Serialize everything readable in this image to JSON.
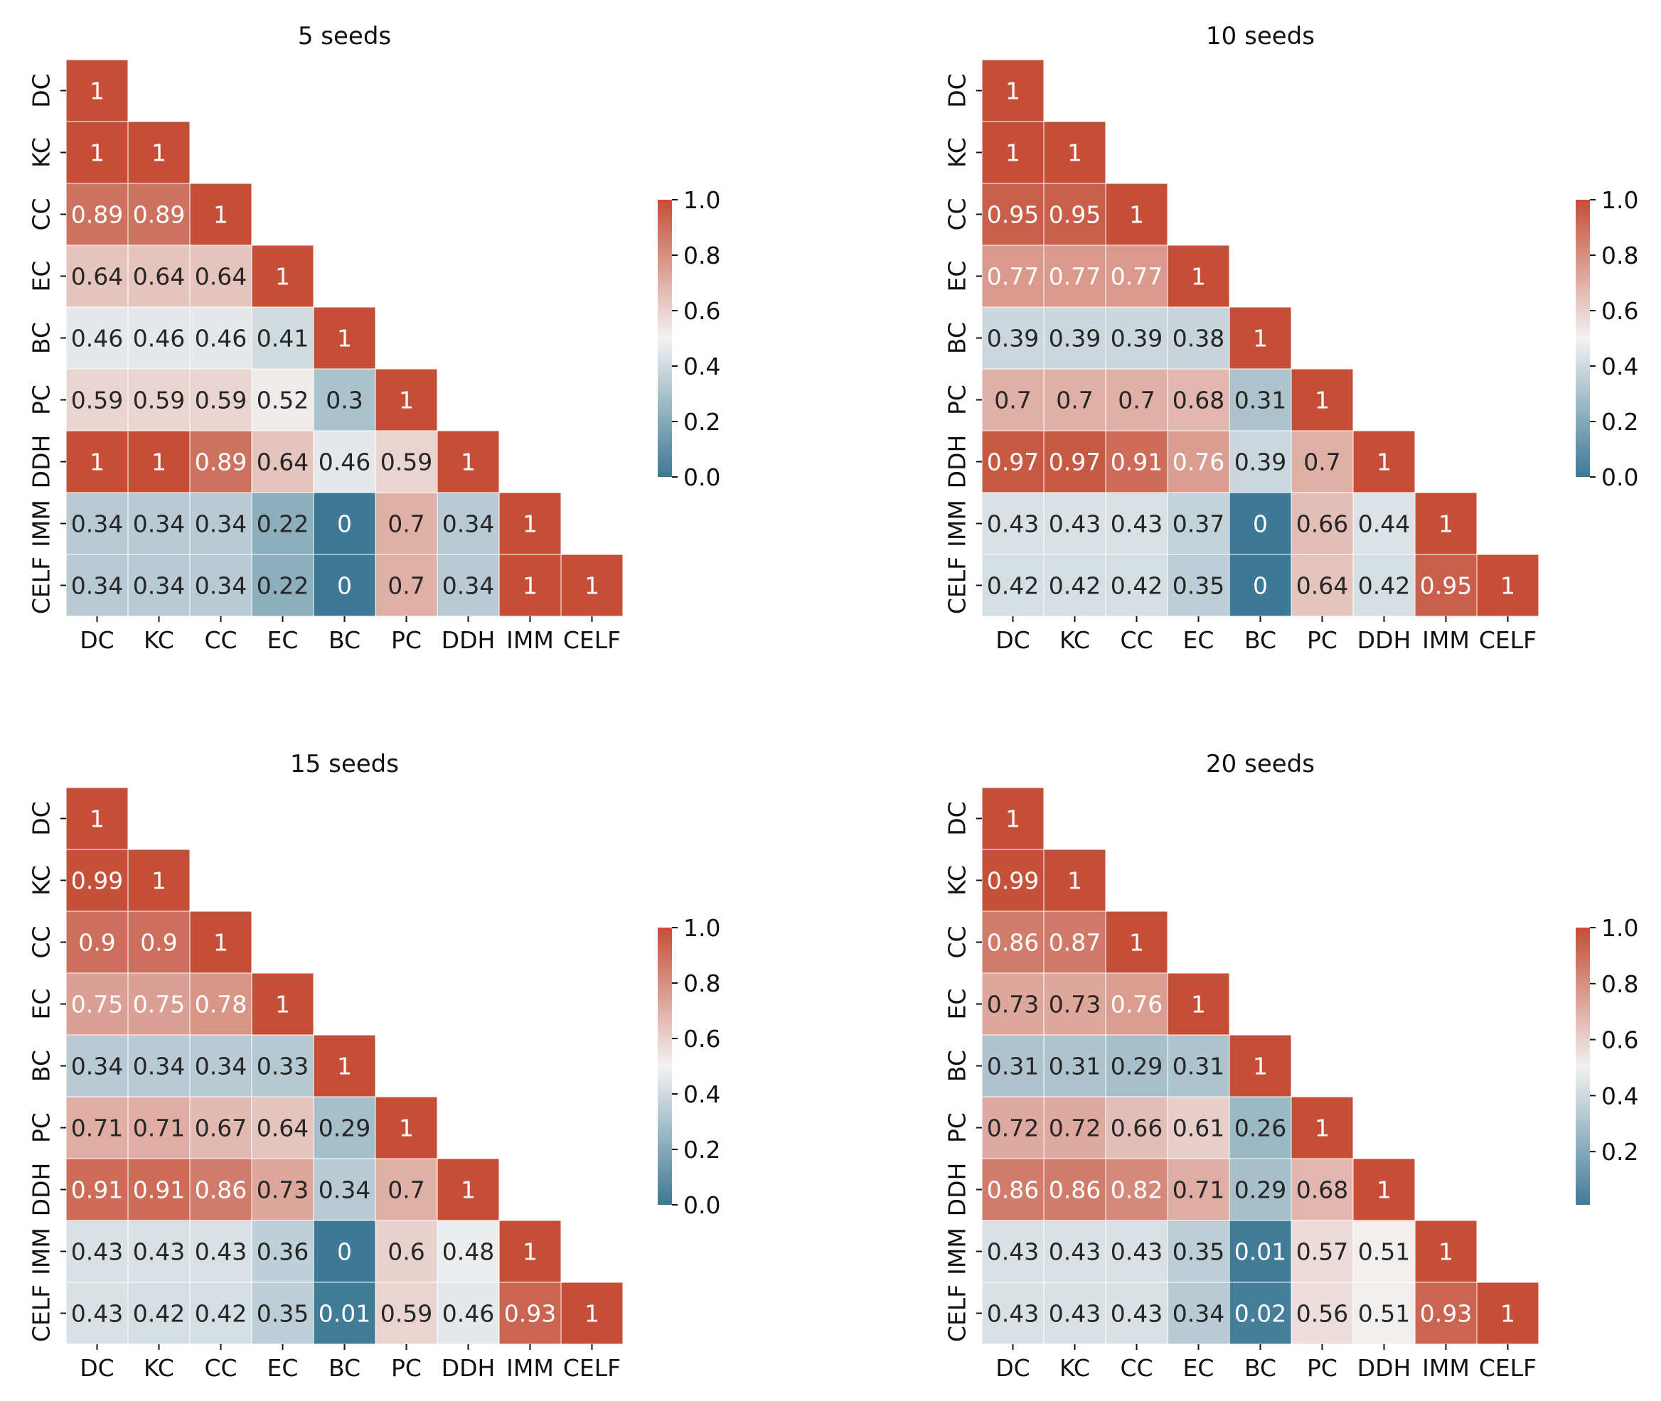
{
  "chart_data": [
    {
      "type": "heatmap",
      "title": "5 seeds",
      "labels": [
        "DC",
        "KC",
        "CC",
        "EC",
        "BC",
        "PC",
        "DDH",
        "IMM",
        "CELF"
      ],
      "matrix": [
        [
          1
        ],
        [
          1,
          1
        ],
        [
          0.89,
          0.89,
          1
        ],
        [
          0.64,
          0.64,
          0.64,
          1
        ],
        [
          0.46,
          0.46,
          0.46,
          0.41,
          1
        ],
        [
          0.59,
          0.59,
          0.59,
          0.52,
          0.3,
          1
        ],
        [
          1,
          1,
          0.89,
          0.64,
          0.46,
          0.59,
          1
        ],
        [
          0.34,
          0.34,
          0.34,
          0.22,
          0,
          0.7,
          0.34,
          1
        ],
        [
          0.34,
          0.34,
          0.34,
          0.22,
          0,
          0.7,
          0.34,
          1,
          1
        ]
      ],
      "colorbar": {
        "min": 0.0,
        "max": 1.0,
        "ticks": [
          "1.0",
          "0.8",
          "0.6",
          "0.4",
          "0.2",
          "0.0"
        ],
        "tick_values": [
          1.0,
          0.8,
          0.6,
          0.4,
          0.2,
          0.0
        ]
      }
    },
    {
      "type": "heatmap",
      "title": "10 seeds",
      "labels": [
        "DC",
        "KC",
        "CC",
        "EC",
        "BC",
        "PC",
        "DDH",
        "IMM",
        "CELF"
      ],
      "matrix": [
        [
          1
        ],
        [
          1,
          1
        ],
        [
          0.95,
          0.95,
          1
        ],
        [
          0.77,
          0.77,
          0.77,
          1
        ],
        [
          0.39,
          0.39,
          0.39,
          0.38,
          1
        ],
        [
          0.7,
          0.7,
          0.7,
          0.68,
          0.31,
          1
        ],
        [
          0.97,
          0.97,
          0.91,
          0.76,
          0.39,
          0.7,
          1
        ],
        [
          0.43,
          0.43,
          0.43,
          0.37,
          0,
          0.66,
          0.44,
          1
        ],
        [
          0.42,
          0.42,
          0.42,
          0.35,
          0,
          0.64,
          0.42,
          0.95,
          1
        ]
      ],
      "colorbar": {
        "min": 0.0,
        "max": 1.0,
        "ticks": [
          "1.0",
          "0.8",
          "0.6",
          "0.4",
          "0.2",
          "0.0"
        ],
        "tick_values": [
          1.0,
          0.8,
          0.6,
          0.4,
          0.2,
          0.0
        ]
      }
    },
    {
      "type": "heatmap",
      "title": "15 seeds",
      "labels": [
        "DC",
        "KC",
        "CC",
        "EC",
        "BC",
        "PC",
        "DDH",
        "IMM",
        "CELF"
      ],
      "matrix": [
        [
          1
        ],
        [
          0.99,
          1
        ],
        [
          0.9,
          0.9,
          1
        ],
        [
          0.75,
          0.75,
          0.78,
          1
        ],
        [
          0.34,
          0.34,
          0.34,
          0.33,
          1
        ],
        [
          0.71,
          0.71,
          0.67,
          0.64,
          0.29,
          1
        ],
        [
          0.91,
          0.91,
          0.86,
          0.73,
          0.34,
          0.7,
          1
        ],
        [
          0.43,
          0.43,
          0.43,
          0.36,
          0,
          0.6,
          0.48,
          1
        ],
        [
          0.43,
          0.42,
          0.42,
          0.35,
          0.01,
          0.59,
          0.46,
          0.93,
          1
        ]
      ],
      "colorbar": {
        "min": 0.0,
        "max": 1.0,
        "ticks": [
          "1.0",
          "0.8",
          "0.6",
          "0.4",
          "0.2",
          "0.0"
        ],
        "tick_values": [
          1.0,
          0.8,
          0.6,
          0.4,
          0.2,
          0.0
        ]
      }
    },
    {
      "type": "heatmap",
      "title": "20 seeds",
      "labels": [
        "DC",
        "KC",
        "CC",
        "EC",
        "BC",
        "PC",
        "DDH",
        "IMM",
        "CELF"
      ],
      "matrix": [
        [
          1
        ],
        [
          0.99,
          1
        ],
        [
          0.86,
          0.87,
          1
        ],
        [
          0.73,
          0.73,
          0.76,
          1
        ],
        [
          0.31,
          0.31,
          0.29,
          0.31,
          1
        ],
        [
          0.72,
          0.72,
          0.66,
          0.61,
          0.26,
          1
        ],
        [
          0.86,
          0.86,
          0.82,
          0.71,
          0.29,
          0.68,
          1
        ],
        [
          0.43,
          0.43,
          0.43,
          0.35,
          0.01,
          0.57,
          0.51,
          1
        ],
        [
          0.43,
          0.43,
          0.43,
          0.34,
          0.02,
          0.56,
          0.51,
          0.93,
          1
        ]
      ],
      "colorbar": {
        "min": 0.01,
        "max": 1.0,
        "ticks": [
          "1.0",
          "0.8",
          "0.6",
          "0.4",
          "0.2"
        ],
        "tick_values": [
          1.0,
          0.8,
          0.6,
          0.4,
          0.2
        ]
      }
    }
  ]
}
